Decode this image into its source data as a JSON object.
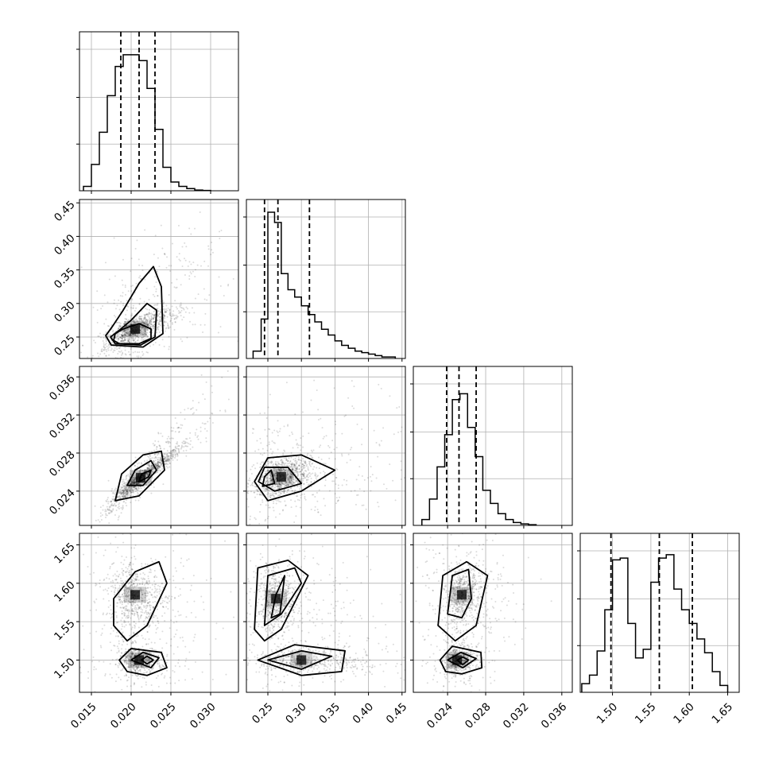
{
  "colors": {
    "ink": "#000000",
    "grid": "#b0b0b0",
    "frame": "#000000"
  },
  "chart_data": {
    "type": "corner",
    "n_params": 4,
    "grid": true,
    "parameters": [
      {
        "range": [
          0.0135,
          0.0335
        ],
        "ticks": [
          0.015,
          0.02,
          0.025,
          0.03
        ],
        "tick_labels": [
          "0.015",
          "0.020",
          "0.025",
          "0.030"
        ]
      },
      {
        "range": [
          0.218,
          0.455
        ],
        "ticks": [
          0.25,
          0.3,
          0.35,
          0.4,
          0.45
        ],
        "tick_labels": [
          "0.25",
          "0.30",
          "0.35",
          "0.40",
          "0.45"
        ]
      },
      {
        "range": [
          0.0204,
          0.0371
        ],
        "ticks": [
          0.024,
          0.028,
          0.032,
          0.036
        ],
        "tick_labels": [
          "0.024",
          "0.028",
          "0.032",
          "0.036"
        ]
      },
      {
        "range": [
          1.458,
          1.665
        ],
        "ticks": [
          1.5,
          1.55,
          1.6,
          1.65
        ],
        "tick_labels": [
          "1.50",
          "1.55",
          "1.60",
          "1.65"
        ]
      }
    ],
    "histograms": [
      {
        "bins": [
          0.014,
          0.015,
          0.016,
          0.017,
          0.018,
          0.019,
          0.02,
          0.021,
          0.022,
          0.023,
          0.024,
          0.025,
          0.026,
          0.027,
          0.028,
          0.029,
          0.03
        ],
        "counts": [
          0.03,
          0.18,
          0.4,
          0.65,
          0.85,
          0.93,
          0.93,
          0.89,
          0.7,
          0.42,
          0.16,
          0.06,
          0.03,
          0.015,
          0.005,
          0.002
        ],
        "quantiles": [
          0.0187,
          0.021,
          0.023
        ],
        "max": 1.0
      },
      {
        "bins": [
          0.228,
          0.24,
          0.25,
          0.26,
          0.27,
          0.28,
          0.29,
          0.3,
          0.31,
          0.32,
          0.33,
          0.34,
          0.35,
          0.36,
          0.37,
          0.38,
          0.39,
          0.4,
          0.41,
          0.42,
          0.43,
          0.44
        ],
        "counts": [
          0.05,
          0.27,
          1.0,
          0.93,
          0.58,
          0.47,
          0.42,
          0.36,
          0.3,
          0.25,
          0.2,
          0.16,
          0.12,
          0.09,
          0.07,
          0.05,
          0.04,
          0.03,
          0.02,
          0.01,
          0.01
        ],
        "quantiles": [
          0.245,
          0.265,
          0.312
        ],
        "max": 1.0
      },
      {
        "bins": [
          0.0213,
          0.0221,
          0.0229,
          0.0237,
          0.0245,
          0.0253,
          0.0261,
          0.0269,
          0.0277,
          0.0285,
          0.0293,
          0.0301,
          0.0309,
          0.0317,
          0.0325,
          0.0333
        ],
        "counts": [
          0.04,
          0.18,
          0.4,
          0.62,
          0.86,
          0.9,
          0.67,
          0.47,
          0.24,
          0.15,
          0.08,
          0.04,
          0.02,
          0.01,
          0.005
        ],
        "quantiles": [
          0.0239,
          0.0252,
          0.027
        ],
        "max": 1.0
      },
      {
        "bins": [
          1.46,
          1.47,
          1.48,
          1.49,
          1.5,
          1.51,
          1.52,
          1.53,
          1.54,
          1.55,
          1.56,
          1.57,
          1.58,
          1.59,
          1.6,
          1.61,
          1.62,
          1.63,
          1.64,
          1.65
        ],
        "counts": [
          0.05,
          0.1,
          0.24,
          0.48,
          0.77,
          0.78,
          0.4,
          0.2,
          0.25,
          0.64,
          0.78,
          0.8,
          0.6,
          0.48,
          0.4,
          0.31,
          0.23,
          0.12,
          0.04
        ],
        "quantiles": [
          1.498,
          1.561,
          1.604
        ],
        "max": 0.85
      }
    ],
    "pairs": [
      {
        "row": 1,
        "col": 0,
        "correlation": 0.7,
        "components": [
          {
            "weight": 1.0,
            "mean": [
              0.0205,
              0.262
            ],
            "sd": [
              0.002,
              0.013
            ],
            "tail": [
              0.0052,
              0.058
            ]
          }
        ],
        "contours": [
          [
            [
              0.0178,
              0.245
            ],
            [
              0.0185,
              0.24
            ],
            [
              0.021,
              0.24
            ],
            [
              0.0225,
              0.248
            ],
            [
              0.0225,
              0.262
            ],
            [
              0.021,
              0.27
            ],
            [
              0.019,
              0.262
            ],
            [
              0.018,
              0.255
            ]
          ],
          [
            [
              0.0174,
              0.25
            ],
            [
              0.018,
              0.24
            ],
            [
              0.0212,
              0.238
            ],
            [
              0.023,
              0.25
            ],
            [
              0.0232,
              0.29
            ],
            [
              0.022,
              0.3
            ],
            [
              0.02,
              0.275
            ],
            [
              0.0185,
              0.26
            ]
          ],
          [
            [
              0.0168,
              0.252
            ],
            [
              0.0175,
              0.238
            ],
            [
              0.0215,
              0.235
            ],
            [
              0.024,
              0.255
            ],
            [
              0.0238,
              0.325
            ],
            [
              0.0228,
              0.355
            ],
            [
              0.021,
              0.33
            ],
            [
              0.019,
              0.29
            ],
            [
              0.0176,
              0.265
            ]
          ]
        ]
      },
      {
        "row": 2,
        "col": 0,
        "correlation": 0.95,
        "components": [
          {
            "weight": 1.0,
            "mean": [
              0.0212,
              0.0254
            ],
            "sd": [
              0.002,
              0.0013
            ],
            "tail": [
              0.0035,
              0.0028
            ]
          }
        ],
        "contours": [
          [
            [
              0.021,
              0.025
            ],
            [
              0.0222,
              0.0255
            ],
            [
              0.0225,
              0.0262
            ],
            [
              0.0213,
              0.0258
            ]
          ],
          [
            [
              0.0195,
              0.0246
            ],
            [
              0.0215,
              0.0246
            ],
            [
              0.0232,
              0.0262
            ],
            [
              0.0225,
              0.0272
            ],
            [
              0.0205,
              0.0262
            ]
          ],
          [
            [
              0.018,
              0.023
            ],
            [
              0.021,
              0.0235
            ],
            [
              0.0242,
              0.0262
            ],
            [
              0.0238,
              0.0282
            ],
            [
              0.0215,
              0.0278
            ],
            [
              0.0188,
              0.0258
            ]
          ]
        ]
      },
      {
        "row": 3,
        "col": 0,
        "correlation": 0.0,
        "components": [
          {
            "weight": 0.55,
            "mean": [
              0.0205,
              1.585
            ],
            "sd": [
              0.0018,
              0.018
            ],
            "tail": [
              0.004,
              0.035
            ]
          },
          {
            "weight": 0.45,
            "mean": [
              0.021,
              1.5
            ],
            "sd": [
              0.0012,
              0.008
            ],
            "tail": [
              0.0035,
              0.022
            ]
          }
        ],
        "contours": [
          [
            [
              0.0213,
              1.5
            ],
            [
              0.022,
              1.505
            ],
            [
              0.0228,
              1.5
            ],
            [
              0.022,
              1.495
            ]
          ],
          [
            [
              0.02,
              1.5
            ],
            [
              0.0215,
              1.51
            ],
            [
              0.0235,
              1.503
            ],
            [
              0.0225,
              1.49
            ]
          ],
          [
            [
              0.0185,
              1.5
            ],
            [
              0.02,
              1.515
            ],
            [
              0.0238,
              1.51
            ],
            [
              0.0245,
              1.49
            ],
            [
              0.022,
              1.48
            ],
            [
              0.0195,
              1.485
            ]
          ],
          [
            [
              0.0178,
              1.545
            ],
            [
              0.0178,
              1.58
            ],
            [
              0.0205,
              1.615
            ],
            [
              0.0235,
              1.628
            ],
            [
              0.0245,
              1.6
            ],
            [
              0.022,
              1.545
            ],
            [
              0.0195,
              1.525
            ]
          ]
        ]
      },
      {
        "row": 2,
        "col": 1,
        "correlation": 0.3,
        "components": [
          {
            "weight": 1.0,
            "mean": [
              0.27,
              0.0255
            ],
            "sd": [
              0.02,
              0.001
            ],
            "tail": [
              0.08,
              0.003
            ]
          }
        ],
        "contours": [
          [
            [
              0.242,
              0.0245
            ],
            [
              0.26,
              0.0248
            ],
            [
              0.255,
              0.0262
            ],
            [
              0.245,
              0.0255
            ]
          ],
          [
            [
              0.236,
              0.025
            ],
            [
              0.26,
              0.024
            ],
            [
              0.3,
              0.0248
            ],
            [
              0.28,
              0.0265
            ],
            [
              0.245,
              0.0265
            ]
          ],
          [
            [
              0.23,
              0.025
            ],
            [
              0.25,
              0.023
            ],
            [
              0.3,
              0.024
            ],
            [
              0.35,
              0.0262
            ],
            [
              0.3,
              0.0278
            ],
            [
              0.25,
              0.0275
            ]
          ]
        ]
      },
      {
        "row": 3,
        "col": 1,
        "correlation": 0.0,
        "components": [
          {
            "weight": 0.55,
            "mean": [
              0.262,
              1.58
            ],
            "sd": [
              0.015,
              0.022
            ],
            "tail": [
              0.06,
              0.03
            ]
          },
          {
            "weight": 0.45,
            "mean": [
              0.3,
              1.5
            ],
            "sd": [
              0.04,
              0.008
            ],
            "tail": [
              0.08,
              0.022
            ]
          }
        ],
        "contours": [
          [
            [
              0.255,
              1.555
            ],
            [
              0.262,
              1.585
            ],
            [
              0.275,
              1.61
            ],
            [
              0.268,
              1.56
            ]
          ],
          [
            [
              0.245,
              1.545
            ],
            [
              0.25,
              1.61
            ],
            [
              0.29,
              1.62
            ],
            [
              0.3,
              1.6
            ],
            [
              0.27,
              1.56
            ]
          ],
          [
            [
              0.23,
              1.54
            ],
            [
              0.235,
              1.62
            ],
            [
              0.28,
              1.63
            ],
            [
              0.31,
              1.61
            ],
            [
              0.27,
              1.54
            ],
            [
              0.245,
              1.525
            ]
          ],
          [
            [
              0.25,
              1.5
            ],
            [
              0.3,
              1.512
            ],
            [
              0.345,
              1.505
            ],
            [
              0.3,
              1.488
            ]
          ],
          [
            [
              0.235,
              1.5
            ],
            [
              0.29,
              1.52
            ],
            [
              0.365,
              1.512
            ],
            [
              0.36,
              1.485
            ],
            [
              0.3,
              1.48
            ]
          ]
        ]
      },
      {
        "row": 3,
        "col": 2,
        "correlation": 0.0,
        "components": [
          {
            "weight": 0.55,
            "mean": [
              0.0255,
              1.585
            ],
            "sd": [
              0.0009,
              0.02
            ],
            "tail": [
              0.0025,
              0.035
            ]
          },
          {
            "weight": 0.45,
            "mean": [
              0.025,
              1.5
            ],
            "sd": [
              0.0007,
              0.008
            ],
            "tail": [
              0.002,
              0.022
            ]
          }
        ],
        "contours": [
          [
            [
              0.025,
              1.5
            ],
            [
              0.0256,
              1.504
            ],
            [
              0.0262,
              1.5
            ],
            [
              0.0256,
              1.494
            ]
          ],
          [
            [
              0.024,
              1.5
            ],
            [
              0.0254,
              1.51
            ],
            [
              0.027,
              1.502
            ],
            [
              0.0256,
              1.49
            ]
          ],
          [
            [
              0.0232,
              1.5
            ],
            [
              0.0245,
              1.518
            ],
            [
              0.0275,
              1.51
            ],
            [
              0.0276,
              1.49
            ],
            [
              0.0255,
              1.482
            ],
            [
              0.0238,
              1.485
            ]
          ],
          [
            [
              0.024,
              1.56
            ],
            [
              0.0245,
              1.61
            ],
            [
              0.0262,
              1.618
            ],
            [
              0.0265,
              1.58
            ],
            [
              0.0255,
              1.555
            ]
          ],
          [
            [
              0.023,
              1.545
            ],
            [
              0.0235,
              1.61
            ],
            [
              0.026,
              1.628
            ],
            [
              0.0282,
              1.61
            ],
            [
              0.027,
              1.545
            ],
            [
              0.0248,
              1.525
            ]
          ]
        ]
      }
    ]
  }
}
